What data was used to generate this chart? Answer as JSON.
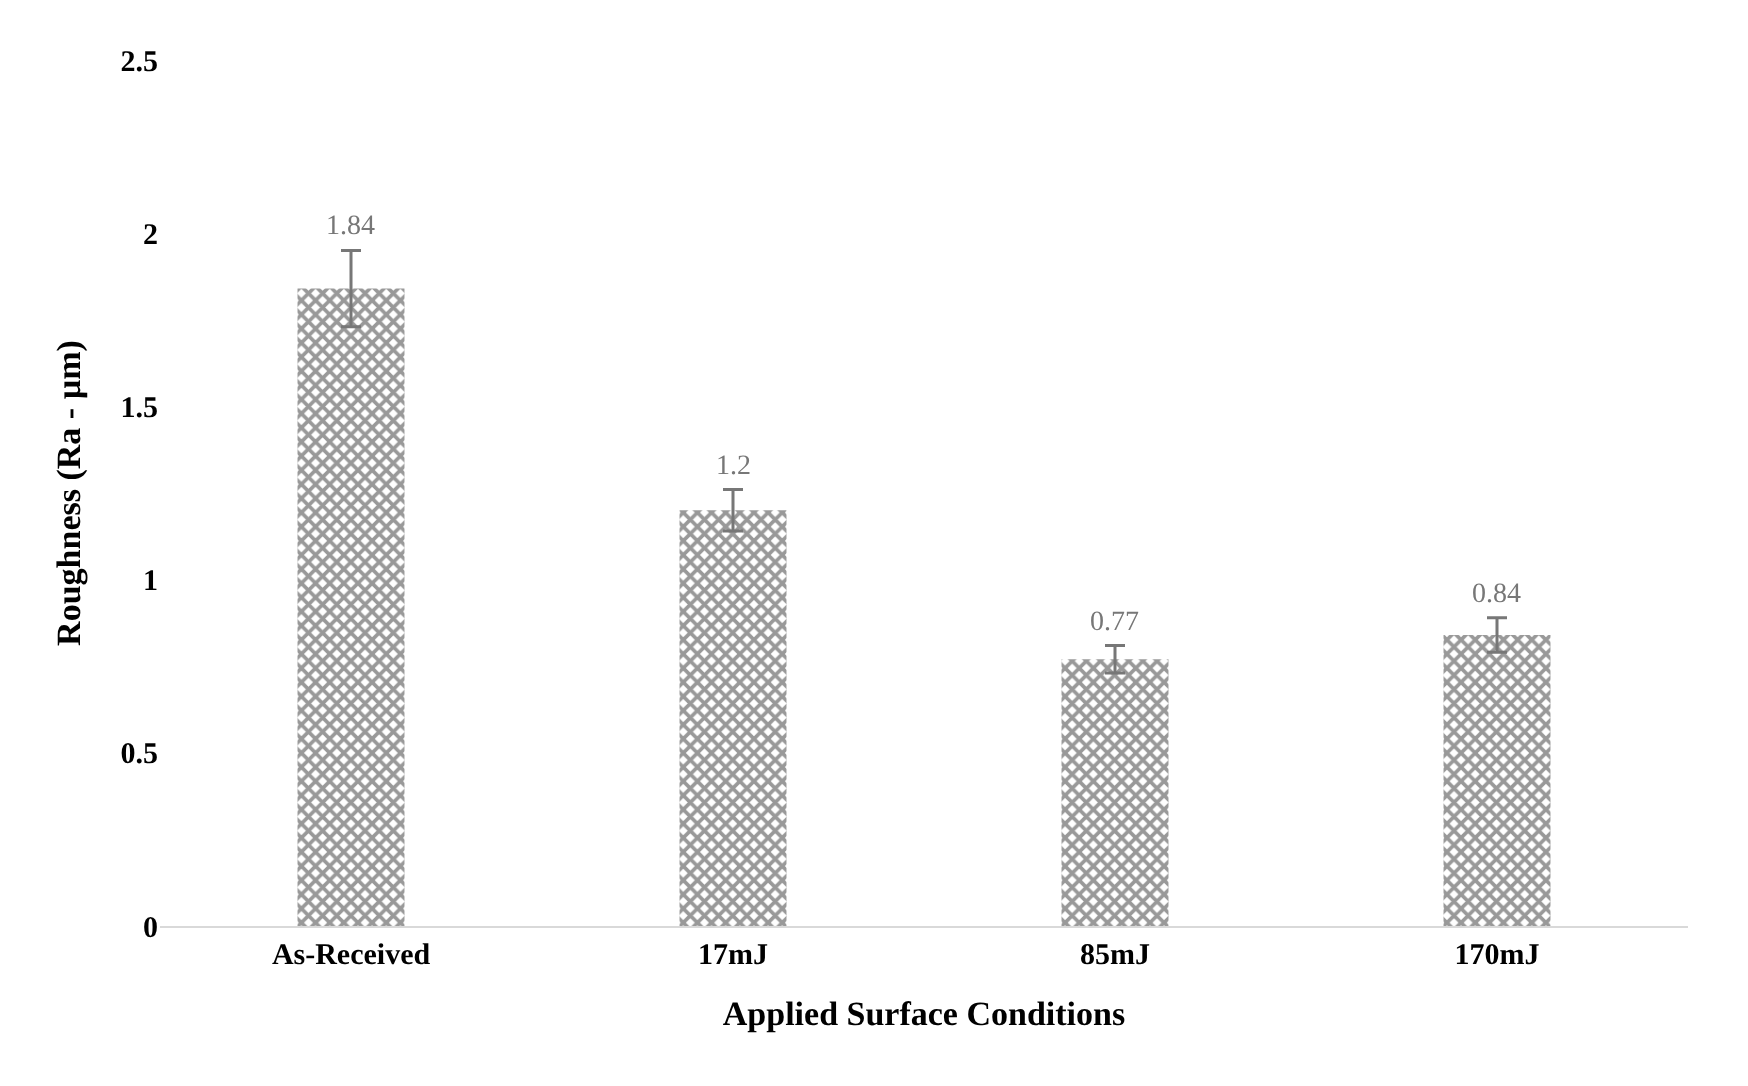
{
  "chart_data": {
    "type": "bar",
    "xlabel": "Applied Surface Conditions",
    "ylabel": "Roughness (Ra - µm)",
    "categories": [
      "As-Received",
      "17mJ",
      "85mJ",
      "170mJ"
    ],
    "values": [
      1.84,
      1.2,
      0.77,
      0.84
    ],
    "errors": [
      0.11,
      0.06,
      0.04,
      0.05
    ],
    "color": "#333333",
    "ylim": [
      0,
      2.5
    ],
    "yticks": [
      0,
      0.5,
      1,
      1.5,
      2,
      2.5
    ],
    "data_labels": true,
    "legend": false
  }
}
